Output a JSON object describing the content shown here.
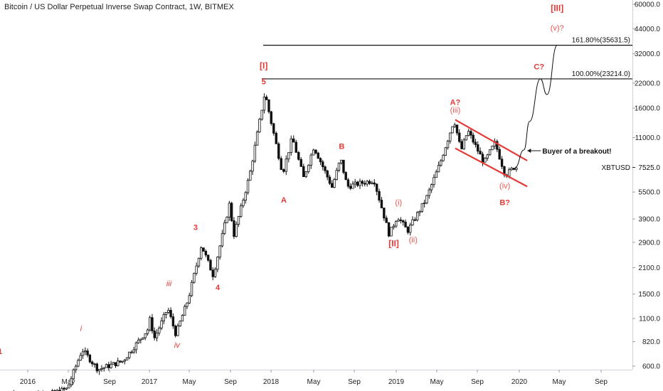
{
  "title": "Bitcoin / US Dollar Perpetual Inverse Swap Contract, 1W, BITMEX",
  "chart_data": {
    "type": "candlestick",
    "y_scale": "log",
    "y_ticks": [
      "60000.0",
      "44000.0",
      "32000.0",
      "22000.0",
      "16000.0",
      "11000.0",
      "7525.0",
      "5500.0",
      "3900.0",
      "2900.0",
      "2100.0",
      "1500.0",
      "1100.0",
      "820.0",
      "600.0"
    ],
    "x_ticks": [
      "2016",
      "May",
      "Sep",
      "2017",
      "May",
      "Sep",
      "2018",
      "May",
      "Sep",
      "2019",
      "May",
      "Sep",
      "2020",
      "May",
      "Sep"
    ],
    "price_label": {
      "symbol": "XBTUSD",
      "value": "7525.0"
    },
    "horizontal_levels": [
      {
        "label": "161.80%(35631.5)",
        "value": 35631.5
      },
      {
        "label": "100.00%(23214.0)",
        "value": 23214.0
      }
    ],
    "price_path": [
      [
        "2015-12-25",
        430
      ],
      [
        "2016-03-01",
        415
      ],
      [
        "2016-05-01",
        450
      ],
      [
        "2016-06-15",
        740
      ],
      [
        "2016-08-01",
        575
      ],
      [
        "2016-10-15",
        640
      ],
      [
        "2016-12-31",
        960
      ],
      [
        "2017-01-05",
        1100
      ],
      [
        "2017-01-20",
        860
      ],
      [
        "2017-03-01",
        1250
      ],
      [
        "2017-03-25",
        900
      ],
      [
        "2017-05-01",
        1400
      ],
      [
        "2017-06-10",
        2800
      ],
      [
        "2017-07-15",
        1900
      ],
      [
        "2017-09-01",
        4700
      ],
      [
        "2017-09-15",
        3200
      ],
      [
        "2017-11-01",
        6800
      ],
      [
        "2017-12-17",
        19500
      ],
      [
        "2018-02-06",
        7000
      ],
      [
        "2018-03-05",
        11000
      ],
      [
        "2018-04-06",
        6600
      ],
      [
        "2018-05-05",
        9800
      ],
      [
        "2018-06-29",
        5850
      ],
      [
        "2018-07-25",
        8400
      ],
      [
        "2018-08-14",
        5900
      ],
      [
        "2018-11-01",
        6400
      ],
      [
        "2018-12-15",
        3200
      ],
      [
        "2019-01-08",
        4050
      ],
      [
        "2019-02-07",
        3350
      ],
      [
        "2019-04-02",
        5000
      ],
      [
        "2019-05-15",
        8000
      ],
      [
        "2019-06-26",
        13800
      ],
      [
        "2019-07-17",
        9300
      ],
      [
        "2019-08-07",
        12000
      ],
      [
        "2019-09-24",
        8000
      ],
      [
        "2019-10-26",
        10300
      ],
      [
        "2019-11-25",
        6800
      ],
      [
        "2019-12-20",
        7525
      ]
    ],
    "projection": [
      [
        "2019-12-20",
        7525
      ],
      [
        "2020-01-15",
        9400
      ],
      [
        "2020-02-01",
        13500
      ],
      [
        "2020-03-05",
        23214
      ],
      [
        "2020-03-25",
        19000
      ],
      [
        "2020-04-25",
        35631
      ]
    ],
    "channel": {
      "upper": [
        [
          "2019-06-26",
          13800
        ],
        [
          "2020-01-25",
          8200
        ]
      ],
      "lower": [
        [
          "2019-06-26",
          9600
        ],
        [
          "2020-01-25",
          5900
        ]
      ]
    },
    "labels": [
      {
        "text": "1",
        "date": "2015-12-25",
        "price": 700,
        "style": "bold"
      },
      {
        "text": "i",
        "date": "2016-06-08",
        "price": 940,
        "style": "italic"
      },
      {
        "text": "iii",
        "date": "2017-03-01",
        "price": 1660,
        "style": "italic"
      },
      {
        "text": "iv",
        "date": "2017-03-25",
        "price": 760,
        "style": "italic"
      },
      {
        "text": "3",
        "date": "2017-05-20",
        "price": 3400,
        "style": "bold"
      },
      {
        "text": "4",
        "date": "2017-07-25",
        "price": 1580,
        "style": "bold"
      },
      {
        "text": "[I]",
        "date": "2017-12-10",
        "price": 26500,
        "style": "bracket"
      },
      {
        "text": "5",
        "date": "2017-12-10",
        "price": 21700,
        "style": "bold"
      },
      {
        "text": "A",
        "date": "2018-02-06",
        "price": 4800,
        "style": "bold"
      },
      {
        "text": "B",
        "date": "2018-07-25",
        "price": 9500,
        "style": "bold"
      },
      {
        "text": "(i)",
        "date": "2019-01-08",
        "price": 4650,
        "style": "light"
      },
      {
        "text": "[II]",
        "date": "2018-12-25",
        "price": 2750,
        "style": "bracket"
      },
      {
        "text": "(ii)",
        "date": "2019-02-20",
        "price": 2900,
        "style": "light"
      },
      {
        "text": "A?",
        "date": "2019-06-26",
        "price": 16700,
        "style": "bold"
      },
      {
        "text": "(iii)",
        "date": "2019-06-26",
        "price": 15100,
        "style": "light"
      },
      {
        "text": "(iv)",
        "date": "2019-11-20",
        "price": 5750,
        "style": "light"
      },
      {
        "text": "B?",
        "date": "2019-11-20",
        "price": 4650,
        "style": "bold"
      },
      {
        "text": "C?",
        "date": "2020-03-01",
        "price": 26200,
        "style": "bold"
      },
      {
        "text": "[III]",
        "date": "2020-04-25",
        "price": 55000,
        "style": "bracket"
      },
      {
        "text": "(v)?",
        "date": "2020-04-25",
        "price": 43000,
        "style": "light"
      }
    ],
    "callout": {
      "text": "Buyer of a breakout!",
      "date": "2020-02-01",
      "price": 9300
    },
    "colors": {
      "red": "#e53935",
      "light_red": "#ef5350",
      "candle": "#111111"
    }
  }
}
